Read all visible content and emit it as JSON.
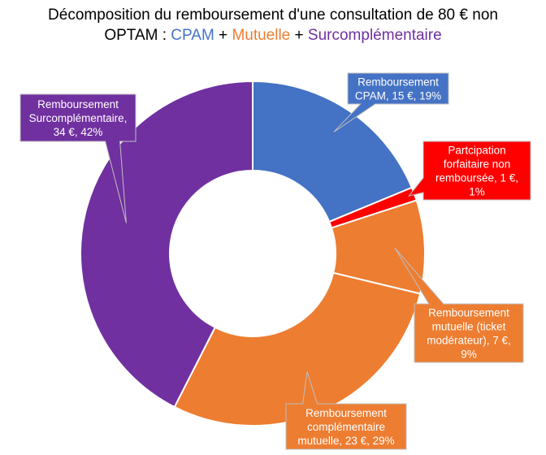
{
  "title": {
    "line1": "Décomposition du remboursement d'une consultation de 80 € non",
    "line2_prefix": "OPTAM : ",
    "part_cpam": "CPAM",
    "plus1": " + ",
    "part_mutuelle": "Mutuelle",
    "plus2": " + ",
    "part_sur": "Surcomplémentaire"
  },
  "chart_data": {
    "type": "pie",
    "variant": "doughnut",
    "currency": "€",
    "slices": [
      {
        "key": "cpam",
        "value": 15,
        "percent": 19,
        "color": "#4472C4",
        "label_lines": [
          "Remboursement",
          "CPAM,  15 €, 19%"
        ]
      },
      {
        "key": "participation",
        "value": 1,
        "percent": 1,
        "color": "#FF0000",
        "label_lines": [
          "Partcipation",
          "forfaitaire non",
          "remboursée,  1 €,",
          "1%"
        ]
      },
      {
        "key": "ticket",
        "value": 7,
        "percent": 9,
        "color": "#ED7D31",
        "label_lines": [
          "Remboursement",
          "mutuelle (ticket",
          "modérateur),  7 €,",
          "9%"
        ]
      },
      {
        "key": "complementaire",
        "value": 23,
        "percent": 29,
        "color": "#ED7D31",
        "label_lines": [
          "Remboursement",
          "complémentaire",
          "mutuelle,  23 €, 29%"
        ]
      },
      {
        "key": "surcomplementaire",
        "value": 34,
        "percent": 42,
        "color": "#7030A0",
        "label_lines": [
          "Remboursement",
          "Surcomplémentaire,",
          "34 €, 42%"
        ]
      }
    ]
  }
}
